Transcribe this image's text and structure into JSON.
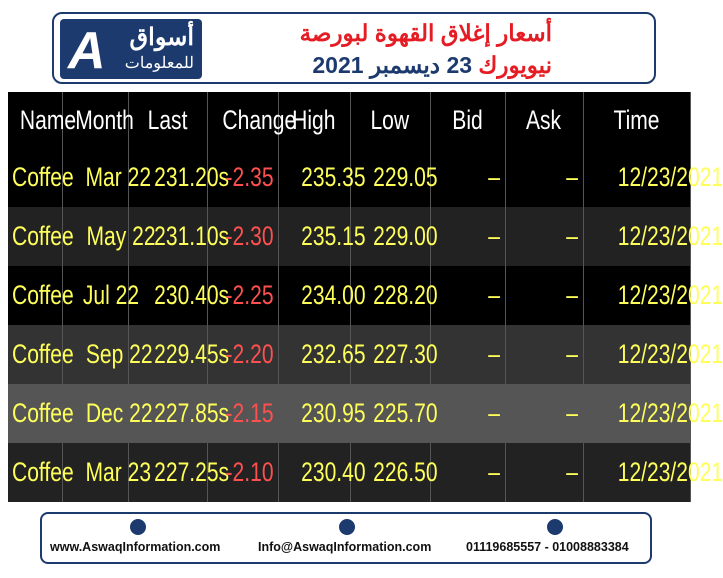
{
  "header": {
    "title_line1": "أسعار إغلاق القهوة لبورصة",
    "title_line2_red": "نيويورك",
    "title_line2_blue": "23 ديسمبر 2021"
  },
  "logo": {
    "icon_letter": "A",
    "name": "أسواق",
    "subtitle": "للمعلومات"
  },
  "table": {
    "columns": [
      "Name",
      "Month",
      "Last",
      "Change",
      "High",
      "Low",
      "Bid",
      "Ask",
      "Time"
    ],
    "rows": [
      [
        "Coffee",
        "Mar 22",
        "231.20s",
        "-2.35",
        "235.35",
        "229.05",
        "–",
        "–",
        "12/23/2021"
      ],
      [
        "Coffee",
        "May 22",
        "231.10s",
        "-2.30",
        "235.15",
        "229.00",
        "–",
        "–",
        "12/23/2021"
      ],
      [
        "Coffee",
        "Jul 22",
        "230.40s",
        "-2.25",
        "234.00",
        "228.20",
        "–",
        "–",
        "12/23/2021"
      ],
      [
        "Coffee",
        "Sep 22",
        "229.45s",
        "-2.20",
        "232.65",
        "227.30",
        "–",
        "–",
        "12/23/2021"
      ],
      [
        "Coffee",
        "Dec 22",
        "227.85s",
        "-2.15",
        "230.95",
        "225.70",
        "–",
        "–",
        "12/23/2021"
      ],
      [
        "Coffee",
        "Mar 23",
        "227.25s",
        "-2.10",
        "230.40",
        "226.50",
        "–",
        "–",
        "12/23/2021"
      ]
    ]
  },
  "footer": {
    "website": "www.AswaqInformation.com",
    "email": "Info@AswaqInformation.com",
    "phones": "01119685557 - 01008883384"
  }
}
